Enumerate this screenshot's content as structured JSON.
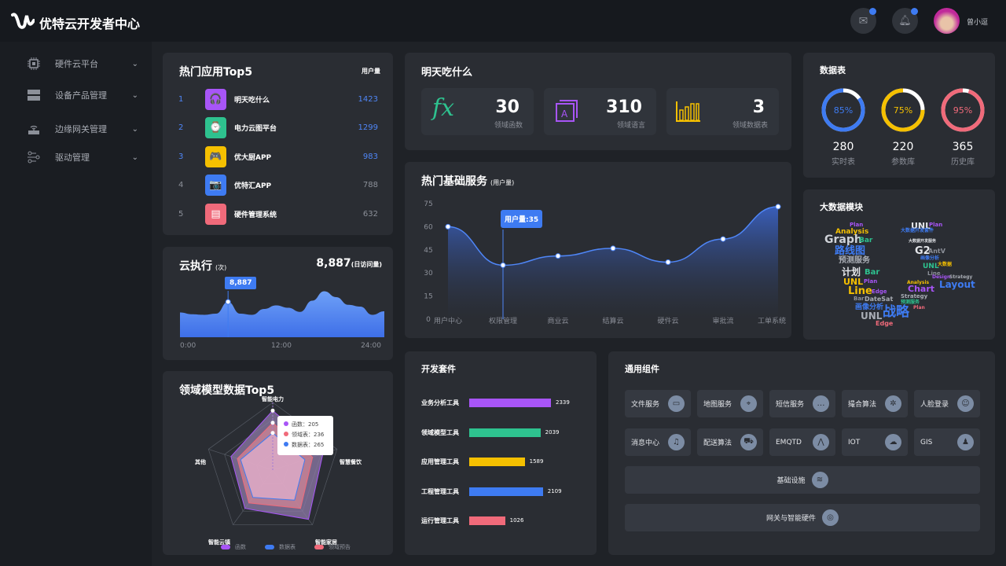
{
  "header": {
    "title": "优特云开发者中心",
    "user": "曾小逗",
    "mail_badge": true,
    "bell_badge": true
  },
  "sidebar": {
    "items": [
      {
        "label": "硬件云平台",
        "icon": "chip-icon"
      },
      {
        "label": "设备产品管理",
        "icon": "server-icon"
      },
      {
        "label": "边缘网关管理",
        "icon": "router-icon"
      },
      {
        "label": "驱动管理",
        "icon": "flow-icon"
      }
    ]
  },
  "top_apps": {
    "title": "热门应用Top5",
    "col": "用户量",
    "items": [
      {
        "rank": "1",
        "name": "明天吃什么",
        "value": "1423",
        "color": "#a855f7",
        "icon": "headphones-icon",
        "glyph": "🎧"
      },
      {
        "rank": "2",
        "name": "电力云图平台",
        "value": "1299",
        "color": "#2ec28f",
        "icon": "watch-icon",
        "glyph": "⌚"
      },
      {
        "rank": "3",
        "name": "优大厨APP",
        "value": "983",
        "color": "#f5c000",
        "icon": "gamepad-icon",
        "glyph": "🎮"
      },
      {
        "rank": "4",
        "name": "优特汇APP",
        "value": "788",
        "color": "#3e7bf2",
        "icon": "camera-icon",
        "glyph": "📷"
      },
      {
        "rank": "5",
        "name": "硬件管理系统",
        "value": "632",
        "color": "#f06a7a",
        "icon": "wallet-icon",
        "glyph": "▤"
      }
    ]
  },
  "cloud_exec": {
    "title": "云执行",
    "unit": "(次)",
    "total": "8,887",
    "total_unit": "(日访问量)",
    "tooltip": "8,887",
    "x_labels": [
      "0:00",
      "12:00",
      "24:00"
    ],
    "series": [
      42,
      39,
      38,
      40,
      60,
      40,
      38,
      48,
      54,
      50,
      43,
      62,
      78,
      68,
      55,
      52,
      38,
      44
    ]
  },
  "radar": {
    "title": "领域模型数据Top5",
    "axes": [
      "智能电力",
      "智慧餐饮",
      "智能家居",
      "智能云镇",
      "其他"
    ],
    "series": [
      {
        "name": "函数",
        "color": "#a855f7",
        "values": [
          0.88,
          0.78,
          0.9,
          0.7,
          0.65
        ]
      },
      {
        "name": "数据表",
        "color": "#3e7bf2",
        "values": [
          0.55,
          0.5,
          0.55,
          0.5,
          0.5
        ]
      },
      {
        "name": "领域预告",
        "color": "#f06a7a",
        "values": [
          0.7,
          0.62,
          0.7,
          0.6,
          0.55
        ]
      }
    ],
    "tooltip": [
      {
        "label": "函数：205",
        "color": "#a855f7"
      },
      {
        "label": "领域表：236",
        "color": "#f06a7a"
      },
      {
        "label": "数据表：265",
        "color": "#3e7bf2"
      }
    ]
  },
  "tomorrow": {
    "title": "明天吃什么",
    "stats": [
      {
        "value": "30",
        "label": "领域函数",
        "icon": "function-icon",
        "color": "#2ec28f"
      },
      {
        "value": "310",
        "label": "领域语言",
        "icon": "document-a-icon",
        "color": "#a855f7"
      },
      {
        "value": "3",
        "label": "领域数据表",
        "icon": "bar-chart-icon",
        "color": "#f5c000"
      }
    ]
  },
  "basic_services": {
    "title": "热门基础服务",
    "unit": "(用户量)",
    "chart_data": {
      "type": "area",
      "categories": [
        "用户中心",
        "权限管理",
        "商业云",
        "结算云",
        "硬件云",
        "审批流",
        "工单系统"
      ],
      "values": [
        60,
        35,
        41,
        46,
        37,
        52,
        73
      ],
      "yticks": [
        "0",
        "15",
        "30",
        "45",
        "60",
        "75"
      ],
      "ylim": [
        0,
        75
      ],
      "tooltip": "用户量:35"
    }
  },
  "dev_kit": {
    "title": "开发套件",
    "chart_data": {
      "type": "bar",
      "categories": [
        "业务分析工具",
        "领域模型工具",
        "应用管理工具",
        "工程管理工具",
        "运行管理工具"
      ],
      "values": [
        2339,
        2039,
        1589,
        2109,
        1026
      ],
      "labels": [
        "2339",
        "2039",
        "1589",
        "2109",
        "1026"
      ],
      "colors": [
        "#a855f7",
        "#2ec28f",
        "#f5c000",
        "#3e7bf2",
        "#f06a7a"
      ]
    }
  },
  "components": {
    "title": "通用组件",
    "items": [
      {
        "label": "文件服务",
        "icon": "folder-icon",
        "glyph": "▭"
      },
      {
        "label": "地图服务",
        "icon": "map-pin-icon",
        "glyph": "⌖"
      },
      {
        "label": "短信服务",
        "icon": "chat-icon",
        "glyph": "…"
      },
      {
        "label": "撮合算法",
        "icon": "atom-icon",
        "glyph": "✲"
      },
      {
        "label": "人脸登录",
        "icon": "face-scan-icon",
        "glyph": "☺"
      },
      {
        "label": "消息中心",
        "icon": "bell-icon",
        "glyph": "♫"
      },
      {
        "label": "配送算法",
        "icon": "truck-icon",
        "glyph": "⛟"
      },
      {
        "label": "EMQTD",
        "icon": "nodes-icon",
        "glyph": "⋀"
      },
      {
        "label": "IOT",
        "icon": "cloud-icon",
        "glyph": "☁"
      },
      {
        "label": "GIS",
        "icon": "user-map-icon",
        "glyph": "♟"
      }
    ],
    "wide": [
      {
        "label": "基础设施",
        "icon": "layers-icon",
        "glyph": "≋"
      },
      {
        "label": "网关与智能硬件",
        "icon": "gateway-icon",
        "glyph": "◎"
      }
    ]
  },
  "data_tables": {
    "title": "数据表",
    "rings": [
      {
        "pct": 85,
        "pct_label": "85%",
        "value": "280",
        "label": "实时表",
        "color": "#3e7bf2"
      },
      {
        "pct": 75,
        "pct_label": "75%",
        "value": "220",
        "label": "参数库",
        "color": "#f5c000"
      },
      {
        "pct": 95,
        "pct_label": "95%",
        "value": "365",
        "label": "历史库",
        "color": "#f06a7a"
      }
    ]
  },
  "bigdata": {
    "title": "大数据模块",
    "words": [
      [
        "Plan",
        1081,
        283,
        7,
        "#a855f7"
      ],
      [
        "Analysis",
        1063,
        291,
        9,
        "#f5c000"
      ],
      [
        "Graph",
        1049,
        298,
        14,
        "#cfd2d8"
      ],
      [
        "Bar",
        1093,
        302,
        9,
        "#2ec28f"
      ],
      [
        "路线图",
        1062,
        313,
        13,
        "#3e7bf2"
      ],
      [
        "预测服务",
        1067,
        327,
        10,
        "#a9adb5"
      ],
      [
        "计划",
        1071,
        340,
        12,
        "#e4e6ea"
      ],
      [
        "Bar",
        1100,
        342,
        10,
        "#2ec28f"
      ],
      [
        "UNL",
        1073,
        353,
        11,
        "#f5c000"
      ],
      [
        "Plan",
        1099,
        355,
        7,
        "#a855f7"
      ],
      [
        "Line",
        1079,
        364,
        13,
        "#f5c000"
      ],
      [
        "Edge",
        1109,
        368,
        7,
        "#a855f7"
      ],
      [
        "Bar",
        1086,
        377,
        7,
        "#8c9099"
      ],
      [
        "DateSat",
        1100,
        377,
        8,
        "#a9adb5"
      ],
      [
        "画像分析",
        1088,
        387,
        9,
        "#3e7bf2"
      ],
      [
        "UNL",
        1095,
        396,
        12,
        "#a9adb5"
      ],
      [
        "战略",
        1123,
        389,
        17,
        "#3e7bf2"
      ],
      [
        "Edge",
        1114,
        408,
        8,
        "#f06a7a"
      ],
      [
        "UNL",
        1159,
        282,
        11,
        "#e4e6ea"
      ],
      [
        "Plan",
        1182,
        283,
        7,
        "#a855f7"
      ],
      [
        "大数据开发套件",
        1146,
        291,
        6,
        "#3e7bf2"
      ],
      [
        "大数据开发服务",
        1156,
        305,
        5,
        "#e4e6ea"
      ],
      [
        "G2",
        1164,
        313,
        13,
        "#e4e6ea"
      ],
      [
        "AntV",
        1181,
        316,
        8,
        "#8c9099"
      ],
      [
        "画像分析",
        1171,
        326,
        6,
        "#3e7bf2"
      ],
      [
        "UNL",
        1174,
        335,
        9,
        "#2ec28f"
      ],
      [
        "大数据",
        1193,
        334,
        6,
        "#f5c000"
      ],
      [
        "Line",
        1180,
        345,
        7,
        "#8c9099"
      ],
      [
        "Design",
        1186,
        350,
        6,
        "#a855f7"
      ],
      [
        "Strategy",
        1208,
        350,
        6,
        "#a9adb5"
      ],
      [
        "Layout",
        1195,
        356,
        12,
        "#3e7bf2"
      ],
      [
        "Analysis",
        1154,
        357,
        6,
        "#f5c000"
      ],
      [
        "Chart",
        1155,
        362,
        11,
        "#a855f7"
      ],
      [
        "Strategy",
        1146,
        374,
        7,
        "#a9adb5"
      ],
      [
        "预测服务",
        1146,
        382,
        6,
        "#2ec28f"
      ],
      [
        "Plan",
        1162,
        389,
        6,
        "#f06a7a"
      ]
    ]
  }
}
